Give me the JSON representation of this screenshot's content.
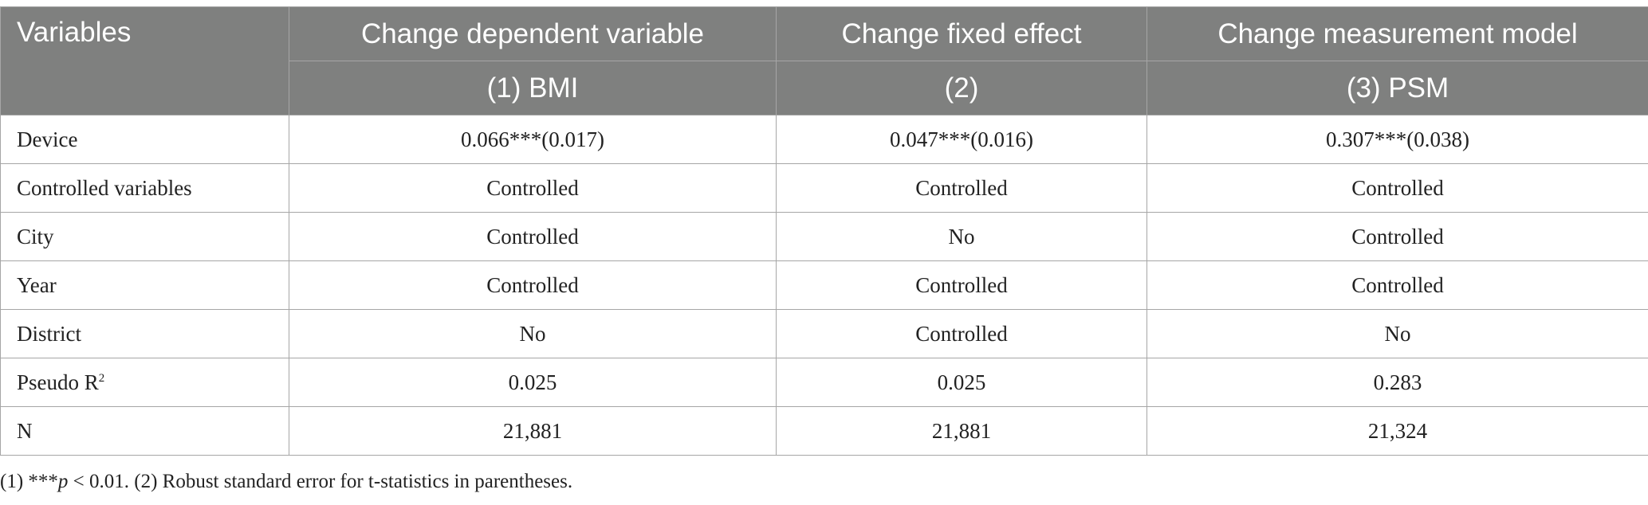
{
  "table": {
    "header": {
      "variables": "Variables",
      "groups": [
        "Change dependent variable",
        "Change fixed effect",
        "Change measurement model"
      ],
      "models": [
        "(1) BMI",
        "(2)",
        "(3) PSM"
      ]
    },
    "rows": [
      {
        "label": "Device",
        "values": [
          "0.066***(0.017)",
          "0.047***(0.016)",
          "0.307***(0.038)"
        ]
      },
      {
        "label": "Controlled variables",
        "values": [
          "Controlled",
          "Controlled",
          "Controlled"
        ]
      },
      {
        "label": "City",
        "values": [
          "Controlled",
          "No",
          "Controlled"
        ]
      },
      {
        "label": "Year",
        "values": [
          "Controlled",
          "Controlled",
          "Controlled"
        ]
      },
      {
        "label": "District",
        "values": [
          "No",
          "Controlled",
          "No"
        ]
      },
      {
        "label": "Pseudo R",
        "label_sup": "2",
        "values": [
          "0.025",
          "0.025",
          "0.283"
        ]
      },
      {
        "label": "N",
        "values": [
          "21,881",
          "21,881",
          "21,324"
        ]
      }
    ]
  },
  "note": {
    "prefix": "(1) ***",
    "italic": "p",
    "suffix": " < 0.01. (2) Robust standard error for t-statistics in parentheses."
  }
}
